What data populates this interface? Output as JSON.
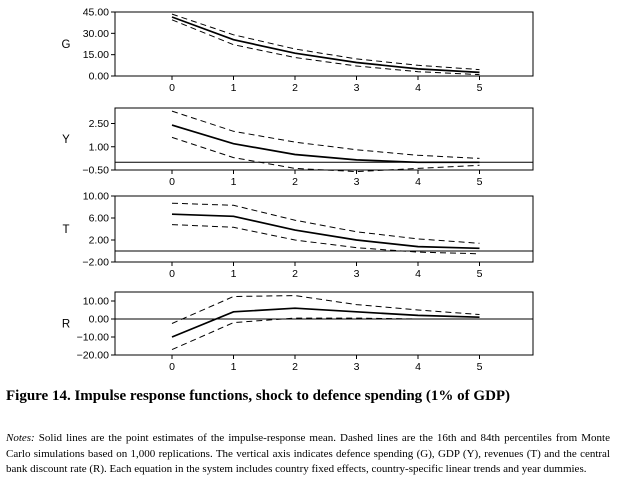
{
  "chart_data": [
    {
      "type": "line",
      "ylabel": "G",
      "x": [
        0,
        1,
        2,
        3,
        4,
        5
      ],
      "yticks": [
        "45.00",
        "30.00",
        "15.00",
        "0.00"
      ],
      "ytick_values": [
        45,
        30,
        15,
        0
      ],
      "ylim": [
        0,
        45
      ],
      "zero_line": false,
      "xticks": [
        "0",
        "1",
        "2",
        "3",
        "4",
        "5"
      ],
      "series": [
        {
          "role": "mean",
          "style": "solid",
          "values": [
            41.5,
            25.5,
            16,
            9.5,
            5,
            2.5
          ]
        },
        {
          "role": "upper",
          "style": "dashed",
          "values": [
            43.5,
            29,
            19,
            12,
            7.5,
            4.5
          ]
        },
        {
          "role": "lower",
          "style": "dashed",
          "values": [
            39.5,
            22,
            13,
            7,
            3,
            1
          ]
        }
      ]
    },
    {
      "type": "line",
      "ylabel": "Y",
      "x": [
        0,
        1,
        2,
        3,
        4,
        5
      ],
      "yticks": [
        "2.50",
        "1.00",
        "−0.50"
      ],
      "ytick_values": [
        2.5,
        1,
        -0.5
      ],
      "ylim": [
        -0.5,
        3.5
      ],
      "zero_line": true,
      "xticks": [
        "0",
        "1",
        "2",
        "3",
        "4",
        "5"
      ],
      "series": [
        {
          "role": "mean",
          "style": "solid",
          "values": [
            2.4,
            1.2,
            0.5,
            0.15,
            0.0,
            0.0
          ]
        },
        {
          "role": "upper",
          "style": "dashed",
          "values": [
            3.3,
            2.0,
            1.3,
            0.8,
            0.45,
            0.25
          ]
        },
        {
          "role": "lower",
          "style": "dashed",
          "values": [
            1.6,
            0.3,
            -0.4,
            -0.6,
            -0.4,
            -0.2
          ]
        }
      ]
    },
    {
      "type": "line",
      "ylabel": "T",
      "x": [
        0,
        1,
        2,
        3,
        4,
        5
      ],
      "yticks": [
        "10.00",
        "6.00",
        "2.00",
        "−2.00"
      ],
      "ytick_values": [
        10,
        6,
        2,
        -2
      ],
      "ylim": [
        -2,
        10
      ],
      "zero_line": true,
      "xticks": [
        "0",
        "1",
        "2",
        "3",
        "4",
        "5"
      ],
      "series": [
        {
          "role": "mean",
          "style": "solid",
          "values": [
            6.7,
            6.3,
            3.8,
            2.0,
            0.8,
            0.5
          ]
        },
        {
          "role": "upper",
          "style": "dashed",
          "values": [
            8.7,
            8.3,
            5.6,
            3.5,
            2.2,
            1.4
          ]
        },
        {
          "role": "lower",
          "style": "dashed",
          "values": [
            4.8,
            4.3,
            2.0,
            0.6,
            -0.2,
            -0.5
          ]
        }
      ]
    },
    {
      "type": "line",
      "ylabel": "R",
      "x": [
        0,
        1,
        2,
        3,
        4,
        5
      ],
      "yticks": [
        "10.00",
        "0.00",
        "−10.00",
        "−20.00"
      ],
      "ytick_values": [
        10,
        0,
        -10,
        -20
      ],
      "ylim": [
        -20,
        15
      ],
      "zero_line": true,
      "xticks": [
        "0",
        "1",
        "2",
        "3",
        "4",
        "5"
      ],
      "series": [
        {
          "role": "mean",
          "style": "solid",
          "values": [
            -10,
            4,
            6,
            4,
            2,
            1
          ]
        },
        {
          "role": "upper",
          "style": "dashed",
          "values": [
            -2.5,
            12.5,
            13,
            8,
            5,
            2.5
          ]
        },
        {
          "role": "lower",
          "style": "dashed",
          "values": [
            -17,
            -2,
            0.5,
            0.5,
            0,
            0
          ]
        }
      ]
    }
  ],
  "figure": {
    "caption": "Figure 14. Impulse response functions, shock to defence spending (1% of GDP)",
    "notes_label": "Notes:",
    "notes_text": " Solid lines are the point estimates of the impulse-response mean. Dashed lines are the 16th and 84th percentiles from Monte Carlo simulations based on 1,000 replications. The vertical axis indicates defence spending (G), GDP (Y), revenues (T) and the central bank discount rate (R). Each equation in the system includes country fixed effects, country-specific linear trends and year dummies."
  }
}
